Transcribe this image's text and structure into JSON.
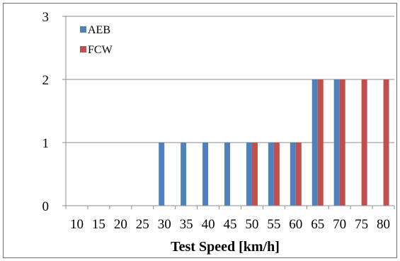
{
  "chart_data": {
    "type": "bar",
    "title": "",
    "xlabel": "Test Speed [km/h]",
    "ylabel": "",
    "ylim": [
      0,
      3
    ],
    "yticks": [
      0,
      1,
      2,
      3
    ],
    "grid": true,
    "legend_position": "top-left",
    "categories": [
      "10",
      "15",
      "20",
      "25",
      "30",
      "35",
      "40",
      "45",
      "50",
      "55",
      "60",
      "65",
      "70",
      "75",
      "80"
    ],
    "series": [
      {
        "name": "AEB",
        "color": "#4f81bd",
        "values": [
          0,
          0,
          0,
          0,
          1,
          1,
          1,
          1,
          1,
          1,
          1,
          2,
          2,
          0,
          0
        ]
      },
      {
        "name": "FCW",
        "color": "#c0504d",
        "values": [
          0,
          0,
          0,
          0,
          0,
          0,
          0,
          0,
          1,
          1,
          1,
          2,
          2,
          2,
          2
        ]
      }
    ]
  }
}
